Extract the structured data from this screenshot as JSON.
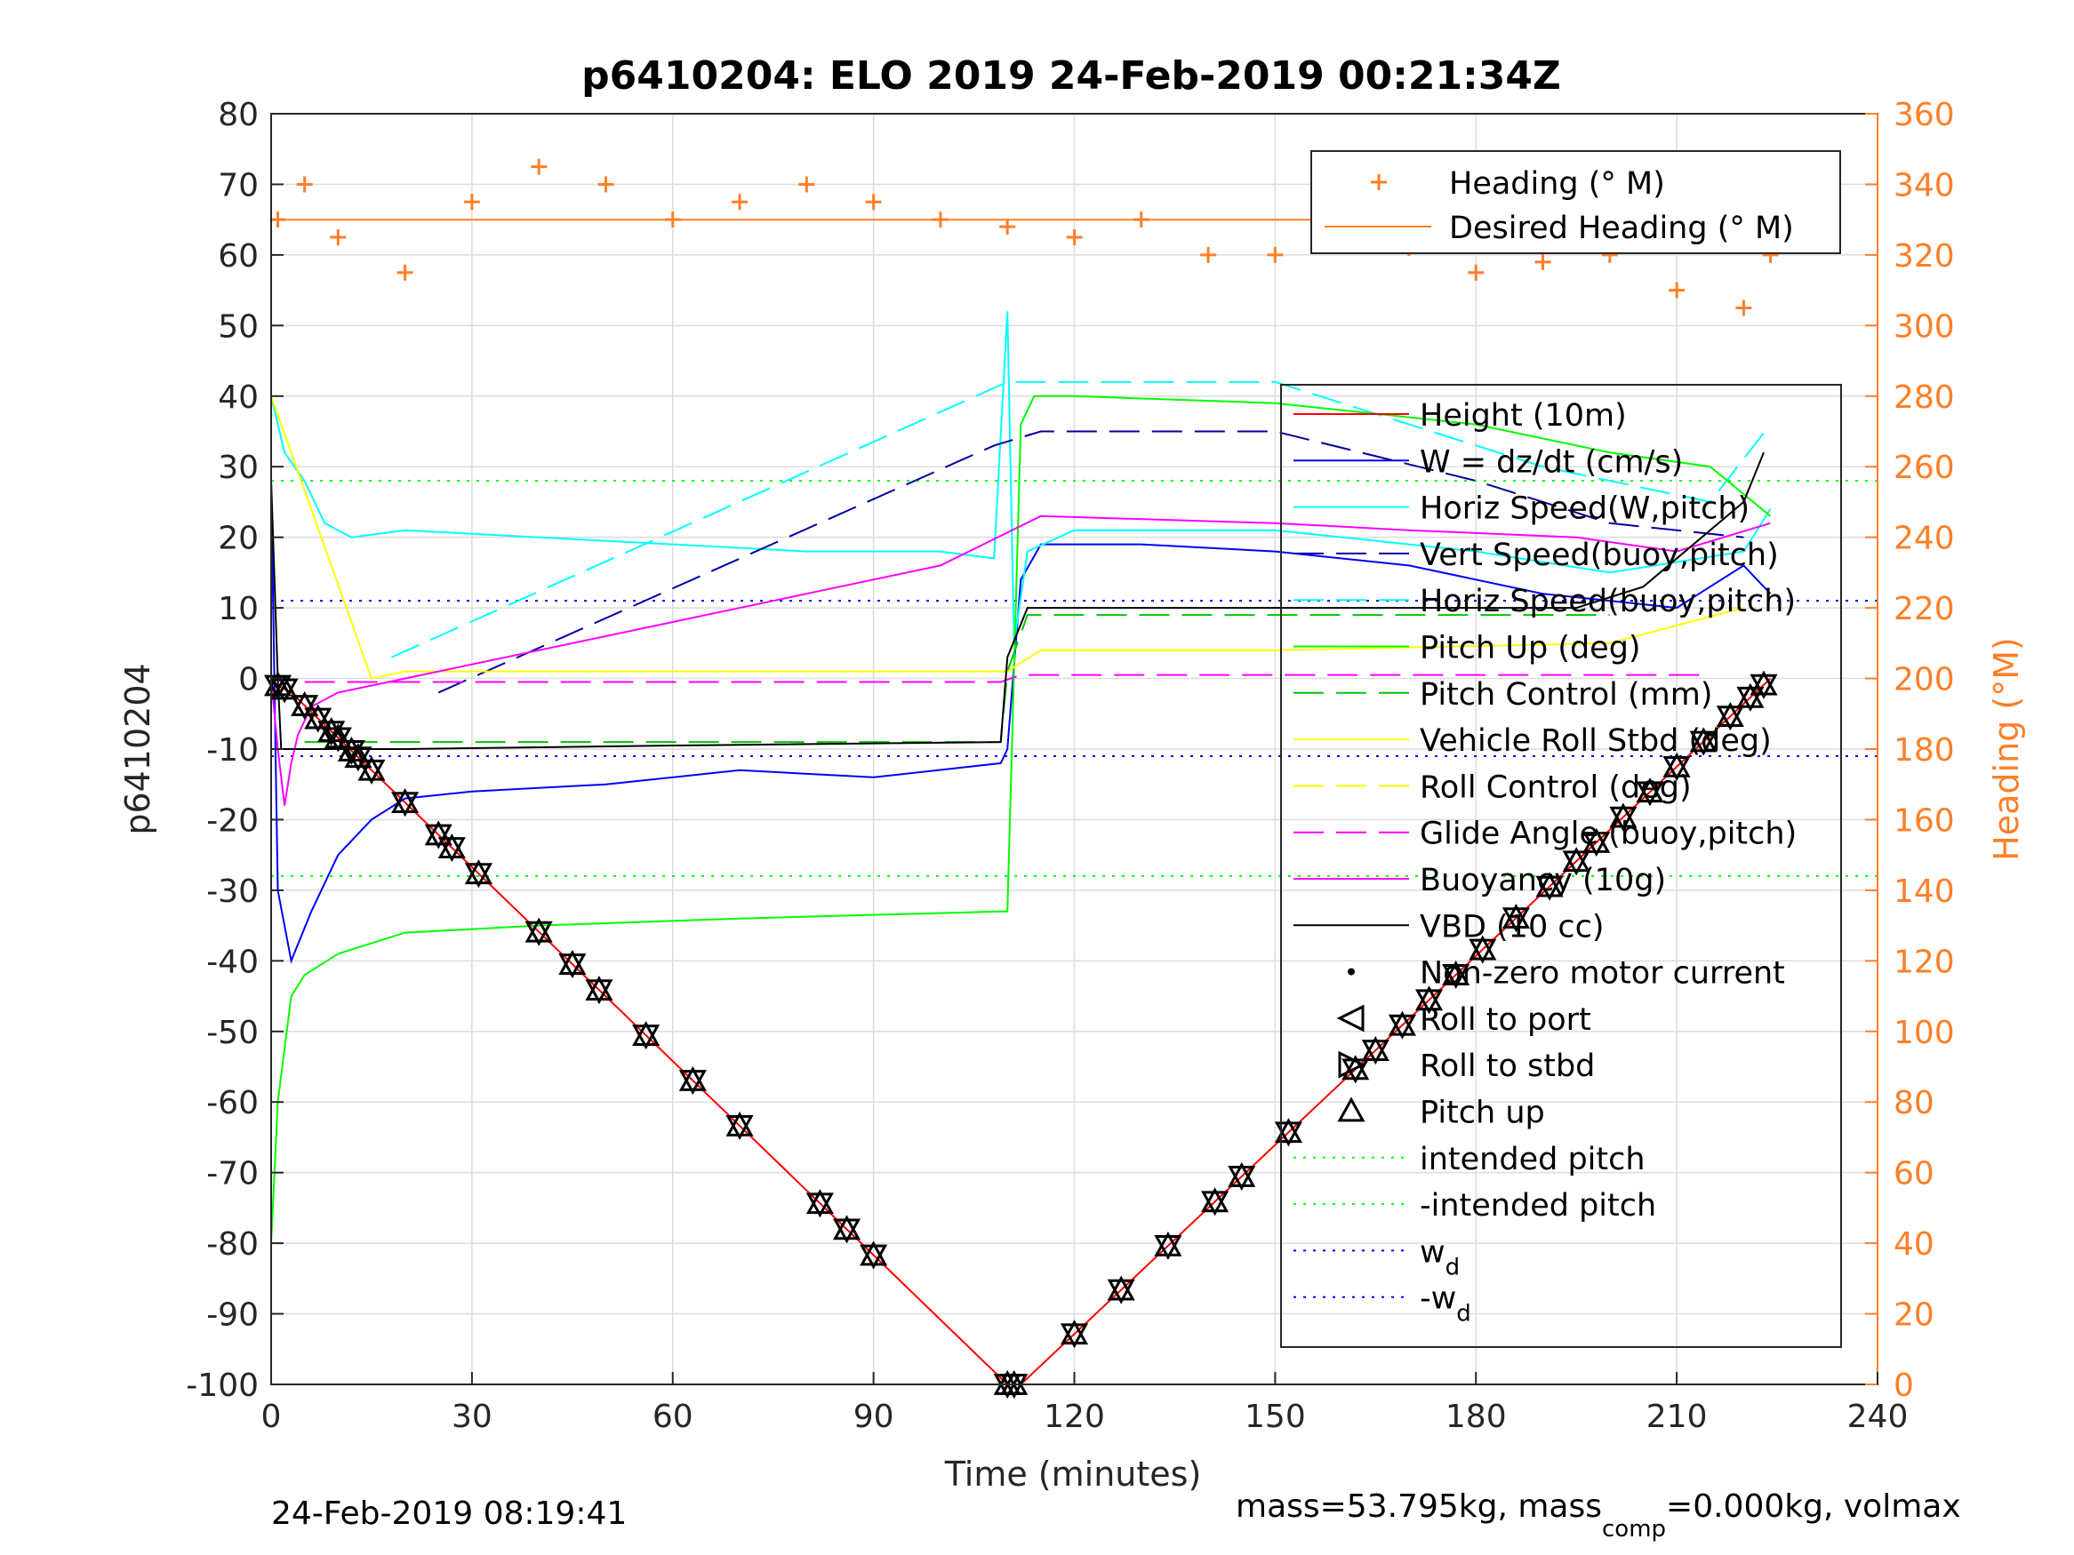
{
  "chart_data": {
    "type": "line",
    "title": "p6410204: ELO 2019 24-Feb-2019 00:21:34Z",
    "xlabel": "Time (minutes)",
    "ylabel": "p6410204",
    "y2label": "Heading (°M)",
    "footer_left": "24-Feb-2019 08:19:41",
    "footer_right": {
      "prefix": "mass=53.795kg, mass",
      "sub": "comp",
      "suffix": "=0.000kg, volmax"
    },
    "xlim": [
      0,
      240
    ],
    "ylim": [
      -100,
      80
    ],
    "y2lim": [
      0,
      360
    ],
    "xticks": [
      "0",
      "30",
      "60",
      "90",
      "120",
      "150",
      "180",
      "210",
      "240"
    ],
    "yticks": [
      "80",
      "70",
      "60",
      "50",
      "40",
      "30",
      "20",
      "10",
      "0",
      "-10",
      "-20",
      "-30",
      "-40",
      "-50",
      "-60",
      "-70",
      "-80",
      "-90",
      "-100"
    ],
    "y2ticks": [
      "360",
      "340",
      "320",
      "300",
      "280",
      "260",
      "240",
      "220",
      "200",
      "180",
      "160",
      "140",
      "120",
      "100",
      "80",
      "60",
      "40",
      "20",
      "0"
    ],
    "grid": true,
    "colors": {
      "heading": "#ff7f27",
      "height": "#ff0000",
      "w": "#0000ff",
      "hspd": "#00ffff",
      "vspd": "#0000a0",
      "pitch": "#00ff00",
      "roll": "#ffff00",
      "glide": "#ff00ff",
      "buoy": "#ff00ff",
      "vbd": "#000000"
    },
    "legend_heading": {
      "position": "top-right",
      "entries": [
        "Heading (° M)",
        "Desired Heading (° M)"
      ]
    },
    "legend_main": {
      "position": "right",
      "entries": [
        "Height (10m)",
        "W = dz/dt (cm/s)",
        "Horiz Speed(W,pitch)",
        "Vert Speed(buoy,pitch)",
        "Horiz Speed(buoy,pitch)",
        "Pitch Up (deg)",
        "Pitch Control (mm)",
        "Vehicle Roll Stbd (deg)",
        "Roll Control (deg)",
        "Glide Angle (buoy,pitch)",
        "Buoyancy (10g)",
        "VBD (10 cc)",
        "Non-zero motor current",
        "Roll to port",
        "Roll to stbd",
        "Pitch up",
        "intended pitch",
        "-intended pitch",
        "w_d",
        "-w_d"
      ]
    },
    "wd_label": {
      "base": "w",
      "sub": "d"
    },
    "wd_neg_label": {
      "base": "-w",
      "sub": "d"
    },
    "series": [
      {
        "name": "Height (10m)",
        "x": [
          0,
          1,
          3,
          110,
          112,
          224
        ],
        "y": [
          0,
          -1,
          -2,
          -100,
          -100,
          0
        ]
      },
      {
        "name": "W = dz/dt (cm/s)",
        "x": [
          0,
          1,
          3,
          6,
          10,
          15,
          20,
          30,
          50,
          70,
          90,
          109,
          110,
          112,
          115,
          130,
          150,
          170,
          190,
          210,
          220,
          224
        ],
        "y": [
          28,
          -30,
          -40,
          -33,
          -25,
          -20,
          -17,
          -16,
          -15,
          -13,
          -14,
          -12,
          -10,
          14,
          19,
          19,
          18,
          16,
          12,
          10,
          16,
          12
        ]
      },
      {
        "name": "Horiz Speed(W,pitch)",
        "x": [
          0,
          2,
          5,
          8,
          12,
          20,
          40,
          60,
          80,
          100,
          108,
          110,
          111,
          113,
          120,
          150,
          180,
          200,
          220,
          224
        ],
        "y": [
          40,
          32,
          28,
          22,
          20,
          21,
          20,
          19,
          18,
          18,
          17,
          52,
          5,
          18,
          21,
          21,
          18,
          15,
          18,
          24
        ]
      },
      {
        "name": "Vert Speed(buoy,pitch)",
        "x": [
          25,
          108,
          115,
          150,
          180,
          200,
          220
        ],
        "y": [
          -2,
          33,
          35,
          35,
          28,
          22,
          20
        ]
      },
      {
        "name": "Horiz Speed(buoy,pitch)",
        "x": [
          18,
          110,
          150,
          190,
          215,
          224
        ],
        "y": [
          3,
          42,
          42,
          30,
          25,
          36
        ]
      },
      {
        "name": "Pitch Up (deg)",
        "x": [
          0,
          1,
          3,
          5,
          10,
          20,
          40,
          70,
          109,
          110,
          112,
          114,
          120,
          150,
          180,
          200,
          215,
          224
        ],
        "y": [
          -80,
          -60,
          -45,
          -42,
          -39,
          -36,
          -35,
          -34,
          -33,
          -33,
          36,
          40,
          40,
          39,
          36,
          32,
          30,
          23
        ]
      },
      {
        "name": "Pitch Control (mm)",
        "x": [
          5,
          109,
          110,
          113,
          200
        ],
        "y": [
          -9,
          -9,
          1,
          9,
          9
        ]
      },
      {
        "name": "Vehicle Roll Stbd (deg)",
        "x": [
          0,
          15,
          20,
          60,
          109,
          110,
          115,
          150,
          200,
          220
        ],
        "y": [
          40,
          0,
          1,
          1,
          1,
          1,
          4,
          4,
          5,
          10
        ]
      },
      {
        "name": "Glide Angle (buoy,pitch)",
        "x": [
          5,
          109,
          112,
          215
        ],
        "y": [
          -0.5,
          -0.5,
          0.5,
          0.5
        ]
      },
      {
        "name": "Buoyancy (10g)",
        "x": [
          0,
          1,
          2,
          3,
          4,
          6,
          10,
          20,
          40,
          60,
          80,
          100,
          115,
          150,
          170,
          195,
          210,
          224
        ],
        "y": [
          0,
          -10,
          -18,
          -12,
          -8,
          -4,
          -2,
          0,
          4,
          8,
          12,
          16,
          23,
          22,
          21,
          20,
          18,
          22
        ]
      },
      {
        "name": "VBD (10 cc)",
        "x": [
          0,
          1,
          1.5,
          5,
          20,
          60,
          109,
          110,
          113,
          150,
          195,
          205,
          220,
          223
        ],
        "y": [
          28,
          0,
          -10,
          -10,
          -10,
          -9.5,
          -9,
          3,
          10,
          10,
          10,
          13,
          25,
          32
        ]
      },
      {
        "name": "Heading (° M)",
        "axis": "y2",
        "x": [
          1,
          5,
          10,
          20,
          30,
          40,
          50,
          60,
          70,
          80,
          90,
          100,
          110,
          120,
          130,
          140,
          150,
          160,
          170,
          180,
          190,
          200,
          210,
          220,
          224
        ],
        "y": [
          330,
          340,
          325,
          315,
          335,
          345,
          340,
          330,
          335,
          340,
          335,
          330,
          328,
          325,
          330,
          320,
          320,
          328,
          322,
          315,
          318,
          320,
          310,
          305,
          320
        ]
      },
      {
        "name": "Desired Heading (° M)",
        "axis": "y2",
        "x": [
          0,
          224
        ],
        "y": [
          330,
          330
        ]
      }
    ],
    "reference_lines": [
      {
        "name": "intended pitch",
        "y": 28
      },
      {
        "name": "-intended pitch",
        "y": -28
      },
      {
        "name": "w_d",
        "y": 11
      },
      {
        "name": "-w_d",
        "y": -11
      }
    ]
  }
}
